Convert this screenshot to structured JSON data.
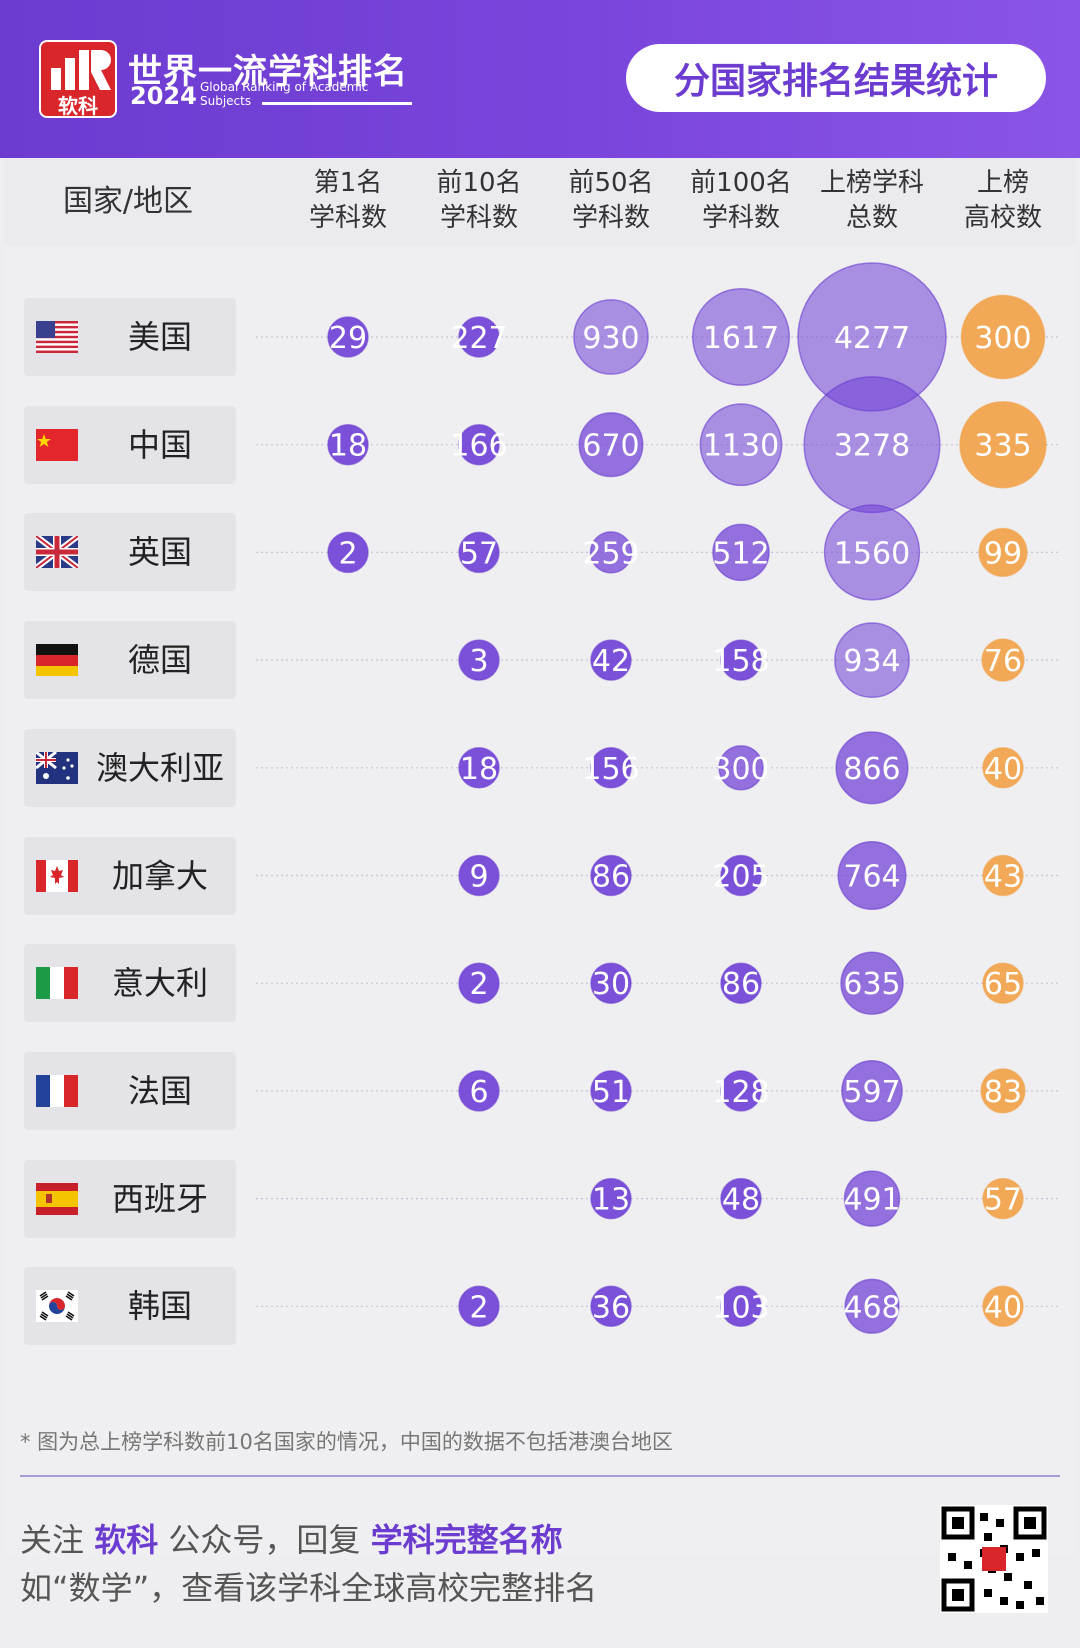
{
  "header": {
    "logo_text": "软科",
    "title": "世界一流学科排名",
    "year": "2024",
    "subtitle_en": "Global Ranking of Academic Subjects",
    "badge": "分国家排名结果统计"
  },
  "table": {
    "columns": [
      "国家/地区",
      "第1名\n学科数",
      "前10名\n学科数",
      "前50名\n学科数",
      "前100名\n学科数",
      "上榜学科\n总数",
      "上榜\n高校数"
    ],
    "col_labels": [
      {
        "line1": "国家/地区",
        "line2": ""
      },
      {
        "line1": "第1名",
        "line2": "学科数"
      },
      {
        "line1": "前10名",
        "line2": "学科数"
      },
      {
        "line1": "前50名",
        "line2": "学科数"
      },
      {
        "line1": "前100名",
        "line2": "学科数"
      },
      {
        "line1": "上榜学科",
        "line2": "总数"
      },
      {
        "line1": "上榜",
        "line2": "高校数"
      }
    ]
  },
  "chart_data": {
    "type": "table",
    "columns": [
      "国家/地区",
      "第1名学科数",
      "前10名学科数",
      "前50名学科数",
      "前100名学科数",
      "上榜学科总数",
      "上榜高校数"
    ],
    "rows": [
      {
        "country": "美国",
        "flag": "us-flag",
        "values": [
          29,
          227,
          930,
          1617,
          4277,
          300
        ]
      },
      {
        "country": "中国",
        "flag": "cn-flag",
        "values": [
          18,
          166,
          670,
          1130,
          3278,
          335
        ]
      },
      {
        "country": "英国",
        "flag": "gb-flag",
        "values": [
          2,
          57,
          259,
          512,
          1560,
          99
        ]
      },
      {
        "country": "德国",
        "flag": "de-flag",
        "values": [
          null,
          3,
          42,
          158,
          934,
          76
        ]
      },
      {
        "country": "澳大利亚",
        "flag": "au-flag",
        "values": [
          null,
          18,
          156,
          300,
          866,
          40
        ]
      },
      {
        "country": "加拿大",
        "flag": "ca-flag",
        "values": [
          null,
          9,
          86,
          205,
          764,
          43
        ]
      },
      {
        "country": "意大利",
        "flag": "it-flag",
        "values": [
          null,
          2,
          30,
          86,
          635,
          65
        ]
      },
      {
        "country": "法国",
        "flag": "fr-flag",
        "values": [
          null,
          6,
          51,
          128,
          597,
          83
        ]
      },
      {
        "country": "西班牙",
        "flag": "es-flag",
        "values": [
          null,
          null,
          13,
          48,
          491,
          57
        ]
      },
      {
        "country": "韩国",
        "flag": "kr-flag",
        "values": [
          null,
          2,
          36,
          103,
          468,
          40
        ]
      }
    ],
    "colors": {
      "subject_bubble": "#6f3fd6",
      "university_bubble": "#f2a34a"
    }
  },
  "footer": {
    "note": "* 图为总上榜学科数前10名国家的情况，中国的数据不包括港澳台地区",
    "line1_a": "关注 ",
    "line1_b": "软科",
    "line1_c": " 公众号，回复 ",
    "line1_d": "学科完整名称",
    "line2": "如“数学”，查看该学科全球高校完整排名"
  }
}
